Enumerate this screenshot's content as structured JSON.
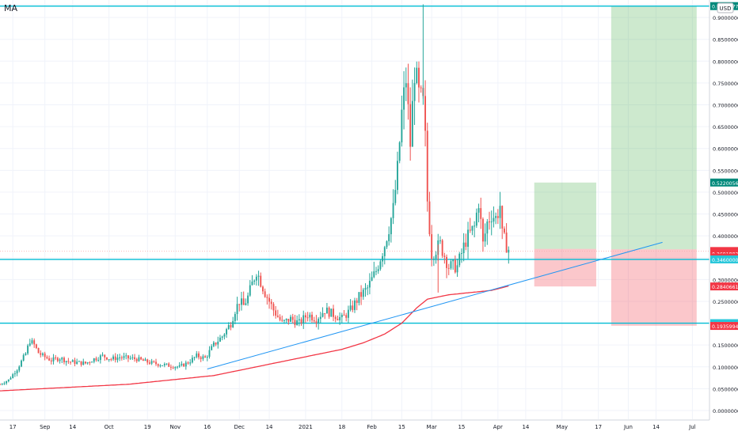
{
  "indicator_label": "MA",
  "currency_badge": "USD",
  "colors": {
    "background": "#ffffff",
    "grid": "#f0f3fa",
    "candle_up": "#26a69a",
    "candle_down": "#ef5350",
    "ma_line": "#f23645",
    "trendline": "#2196f3",
    "hline": "#00bcd4",
    "target_zone": "rgba(76,175,80,0.28)",
    "stop_zone": "rgba(242,54,69,0.28)",
    "axis_text": "#131722"
  },
  "chart_data": {
    "type": "candlestick",
    "symbol": "XEMUSD",
    "x_axis": {
      "tick_labels": [
        "17",
        "Sep",
        "14",
        "Oct",
        "19",
        "Nov",
        "16",
        "Dec",
        "14",
        "2021",
        "18",
        "Feb",
        "15",
        "Mar",
        "15",
        "Apr",
        "14",
        "May",
        "17",
        "Jun",
        "14",
        "Jul"
      ],
      "tick_days": [
        -14,
        1,
        14,
        31,
        49,
        62,
        77,
        92,
        106,
        123,
        140,
        154,
        168,
        182,
        196,
        213,
        226,
        243,
        260,
        274,
        287,
        304
      ]
    },
    "y_axis": {
      "ylim": [
        -0.02,
        0.94
      ],
      "tick_labels": [
        "0.00000000",
        "0.05000000",
        "0.10000000",
        "0.15000000",
        "0.20000000",
        "0.25000000",
        "0.30000000",
        "0.35000000",
        "0.40000000",
        "0.45000000",
        "0.50000000",
        "0.55000000",
        "0.60000000",
        "0.65000000",
        "0.70000000",
        "0.75000000",
        "0.80000000",
        "0.85000000",
        "0.90000000",
        "0.93000000"
      ],
      "tick_values": [
        0,
        0.05,
        0.1,
        0.15,
        0.2,
        0.25,
        0.3,
        0.35,
        0.4,
        0.45,
        0.5,
        0.55,
        0.6,
        0.65,
        0.7,
        0.75,
        0.8,
        0.85,
        0.9,
        0.93
      ],
      "price_markers": [
        {
          "label": "0.92600771",
          "value": 0.926,
          "color": "#00897b"
        },
        {
          "label": "0.52200566",
          "value": 0.522,
          "color": "#00897b"
        },
        {
          "label": "0.37453279",
          "value": 0.3745,
          "color": "plain"
        },
        {
          "label": "0.37081468",
          "value": 0.3708,
          "color": "plain"
        },
        {
          "label": "XEMUSD",
          "value": 0.3652,
          "color": "#f23645"
        },
        {
          "label": "0.36918820",
          "value": 0.3592,
          "color": "#f23645"
        },
        {
          "label": "03:14:01",
          "value": 0.3502,
          "color": "#f23645"
        },
        {
          "label": "0.34600000",
          "value": 0.346,
          "color": "#26c6da"
        },
        {
          "label": "0.28406611",
          "value": 0.2841,
          "color": "#f23645"
        },
        {
          "label": "0.20000000",
          "value": 0.2,
          "color": "#26c6da"
        },
        {
          "label": "0.19359944",
          "value": 0.1936,
          "color": "#f23645"
        }
      ]
    },
    "horizontal_lines": [
      0.926,
      0.346,
      0.2
    ],
    "trendline": {
      "from": [
        77,
        0.095
      ],
      "to": [
        290,
        0.385
      ]
    },
    "position_boxes": [
      {
        "x_from": 230,
        "x_to": 259,
        "entry": 0.37,
        "target": 0.522,
        "stop": 0.284
      },
      {
        "x_from": 266,
        "x_to": 306,
        "entry": 0.369,
        "target": 0.926,
        "stop": 0.194
      }
    ],
    "price_anchors": [
      [
        -20,
        0.06
      ],
      [
        -16,
        0.07
      ],
      [
        -12,
        0.095
      ],
      [
        -8,
        0.13
      ],
      [
        -6,
        0.16
      ],
      [
        -4,
        0.15
      ],
      [
        -2,
        0.132
      ],
      [
        0,
        0.125
      ],
      [
        4,
        0.115
      ],
      [
        8,
        0.12
      ],
      [
        12,
        0.112
      ],
      [
        16,
        0.11
      ],
      [
        20,
        0.108
      ],
      [
        24,
        0.118
      ],
      [
        28,
        0.125
      ],
      [
        32,
        0.118
      ],
      [
        36,
        0.122
      ],
      [
        40,
        0.12
      ],
      [
        44,
        0.118
      ],
      [
        48,
        0.112
      ],
      [
        52,
        0.108
      ],
      [
        56,
        0.105
      ],
      [
        60,
        0.102
      ],
      [
        64,
        0.1
      ],
      [
        68,
        0.11
      ],
      [
        72,
        0.125
      ],
      [
        76,
        0.12
      ],
      [
        80,
        0.15
      ],
      [
        84,
        0.17
      ],
      [
        88,
        0.2
      ],
      [
        90,
        0.23
      ],
      [
        92,
        0.25
      ],
      [
        94,
        0.24
      ],
      [
        96,
        0.26
      ],
      [
        98,
        0.29
      ],
      [
        100,
        0.32
      ],
      [
        104,
        0.27
      ],
      [
        108,
        0.23
      ],
      [
        112,
        0.2
      ],
      [
        116,
        0.21
      ],
      [
        120,
        0.2
      ],
      [
        124,
        0.22
      ],
      [
        128,
        0.21
      ],
      [
        132,
        0.23
      ],
      [
        136,
        0.22
      ],
      [
        140,
        0.21
      ],
      [
        144,
        0.23
      ],
      [
        148,
        0.26
      ],
      [
        152,
        0.28
      ],
      [
        156,
        0.32
      ],
      [
        160,
        0.38
      ],
      [
        162,
        0.42
      ],
      [
        164,
        0.46
      ],
      [
        166,
        0.55
      ],
      [
        168,
        0.68
      ],
      [
        170,
        0.76
      ],
      [
        172,
        0.61
      ],
      [
        174,
        0.78
      ],
      [
        176,
        0.72
      ],
      [
        178,
        0.7
      ],
      [
        179,
        0.62
      ],
      [
        180,
        0.48
      ],
      [
        182,
        0.36
      ],
      [
        186,
        0.38
      ],
      [
        190,
        0.33
      ],
      [
        194,
        0.33
      ],
      [
        198,
        0.39
      ],
      [
        202,
        0.42
      ],
      [
        204,
        0.48
      ],
      [
        206,
        0.38
      ],
      [
        208,
        0.43
      ],
      [
        210,
        0.45
      ],
      [
        212,
        0.44
      ],
      [
        214,
        0.47
      ],
      [
        215,
        0.4
      ],
      [
        218,
        0.369
      ]
    ],
    "ma_anchors": [
      [
        -20,
        0.045
      ],
      [
        0,
        0.05
      ],
      [
        40,
        0.06
      ],
      [
        80,
        0.08
      ],
      [
        100,
        0.1
      ],
      [
        120,
        0.12
      ],
      [
        140,
        0.14
      ],
      [
        150,
        0.155
      ],
      [
        160,
        0.175
      ],
      [
        168,
        0.2
      ],
      [
        175,
        0.235
      ],
      [
        180,
        0.255
      ],
      [
        190,
        0.265
      ],
      [
        200,
        0.27
      ],
      [
        210,
        0.275
      ],
      [
        218,
        0.285
      ]
    ]
  }
}
